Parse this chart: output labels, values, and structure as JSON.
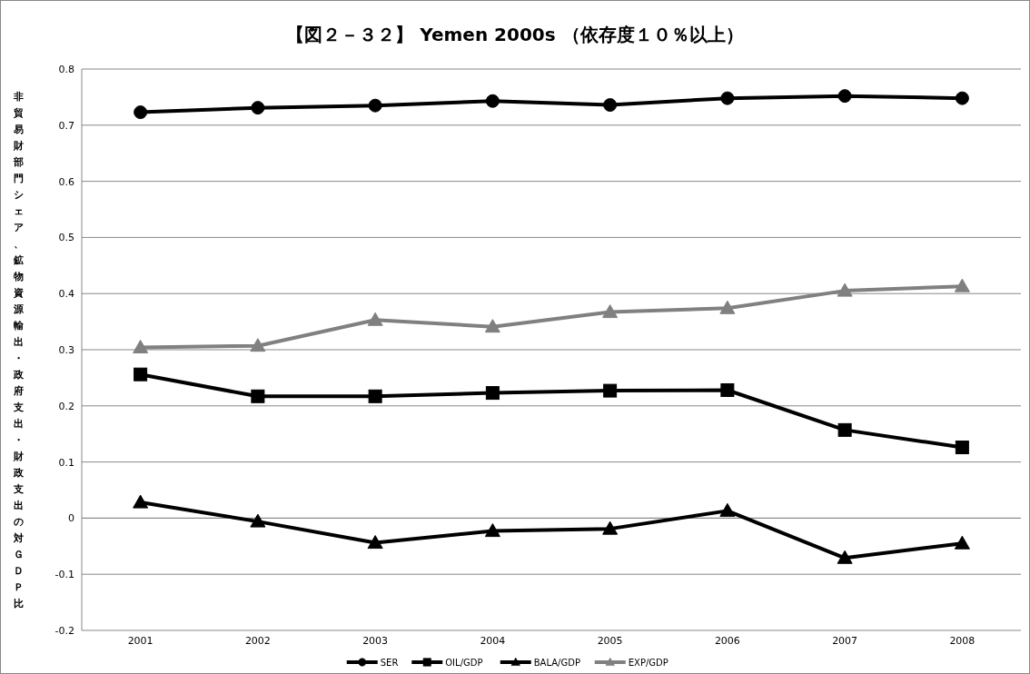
{
  "chart_data": {
    "type": "line",
    "title": "【図２－３２】 Yemen 2000s （依存度１０％以上）",
    "ylabel": "非貿易財部門シェア、鉱物資源輸出・政府支出・財政支出の対ＧＤＰ比",
    "categories": [
      "2001",
      "2002",
      "2003",
      "2004",
      "2005",
      "2006",
      "2007",
      "2008"
    ],
    "ylim": [
      -0.2,
      0.8
    ],
    "yticks": [
      -0.2,
      -0.1,
      0,
      0.1,
      0.2,
      0.3,
      0.4,
      0.5,
      0.6,
      0.7,
      0.8
    ],
    "grid": "y",
    "legend": "bottom",
    "line_style": "solid",
    "series": [
      {
        "name": "SER",
        "color": "#000000",
        "marker": "circle",
        "values": [
          0.723,
          0.731,
          0.735,
          0.743,
          0.736,
          0.748,
          0.752,
          0.748
        ]
      },
      {
        "name": "OIL/GDP",
        "color": "#000000",
        "marker": "square",
        "values": [
          0.256,
          0.217,
          0.217,
          0.223,
          0.227,
          0.228,
          0.157,
          0.126
        ]
      },
      {
        "name": "BALA/GDP",
        "color": "#000000",
        "marker": "triangle",
        "values": [
          0.028,
          -0.006,
          -0.044,
          -0.023,
          -0.019,
          0.013,
          -0.071,
          -0.045
        ]
      },
      {
        "name": "EXP/GDP",
        "color": "#808080",
        "marker": "triangle",
        "values": [
          0.304,
          0.307,
          0.353,
          0.341,
          0.367,
          0.374,
          0.405,
          0.413
        ]
      }
    ]
  }
}
